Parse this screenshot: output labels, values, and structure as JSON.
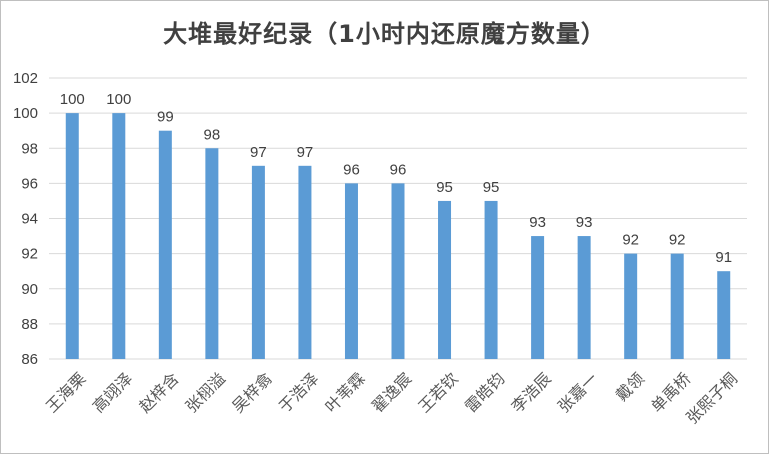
{
  "chart_data": {
    "type": "bar",
    "title": "大堆最好纪录（1小时内还原魔方数量）",
    "categories": [
      "王海栗",
      "高翊泽",
      "赵梓含",
      "张栩溢",
      "吴梓翕",
      "于浩泽",
      "叶苇霖",
      "翟逸宸",
      "王若钦",
      "雷皓钧",
      "李浩辰",
      "张嘉一",
      "戴领",
      "单禹桥",
      "张熙子桐"
    ],
    "values": [
      100,
      100,
      99,
      98,
      97,
      97,
      96,
      96,
      95,
      95,
      93,
      93,
      92,
      92,
      91
    ],
    "ylim": [
      86,
      102
    ],
    "yticks": [
      "86",
      "88",
      "90",
      "92",
      "94",
      "96",
      "98",
      "100",
      "102"
    ],
    "xlabel": "",
    "ylabel": "",
    "grid": true,
    "bar_color": "#5b9bd5",
    "grid_color": "#d9d9d9"
  }
}
